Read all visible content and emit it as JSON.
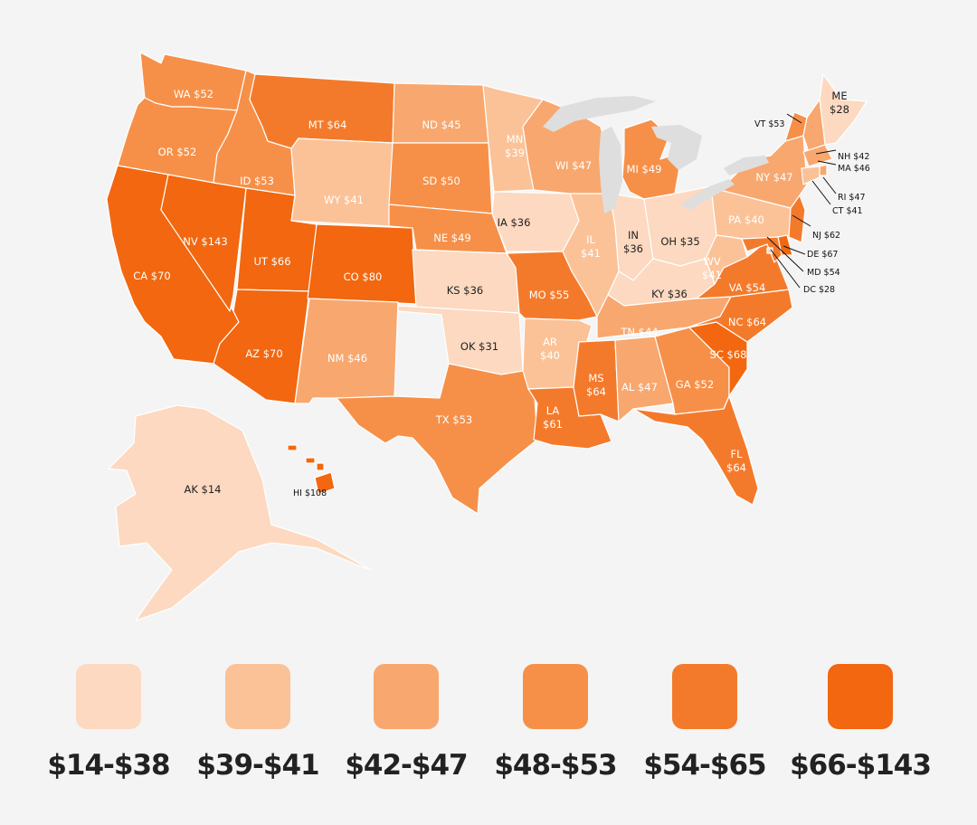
{
  "colors": {
    "background": "#f4f4f4",
    "bins": [
      "#fcd9c0",
      "#fbc298",
      "#f8a76f",
      "#f69049",
      "#f47a2b",
      "#f2670f"
    ]
  },
  "legend": [
    {
      "label": "$14-$38",
      "bin": 0
    },
    {
      "label": "$39-$41",
      "bin": 1
    },
    {
      "label": "$42-$47",
      "bin": 2
    },
    {
      "label": "$48-$53",
      "bin": 3
    },
    {
      "label": "$54-$65",
      "bin": 4
    },
    {
      "label": "$66-$143",
      "bin": 5
    }
  ],
  "states": [
    {
      "abbr": "WA",
      "label": "WA $52",
      "value": 52,
      "bin": 3
    },
    {
      "abbr": "OR",
      "label": "OR $52",
      "value": 52,
      "bin": 3
    },
    {
      "abbr": "CA",
      "label": "CA $70",
      "value": 70,
      "bin": 5
    },
    {
      "abbr": "NV",
      "label": "NV $143",
      "value": 143,
      "bin": 5
    },
    {
      "abbr": "ID",
      "label": "ID $53",
      "value": 53,
      "bin": 3
    },
    {
      "abbr": "MT",
      "label": "MT $64",
      "value": 64,
      "bin": 4
    },
    {
      "abbr": "WY",
      "label": "WY $41",
      "value": 41,
      "bin": 1
    },
    {
      "abbr": "UT",
      "label": "UT $66",
      "value": 66,
      "bin": 5
    },
    {
      "abbr": "AZ",
      "label": "AZ $70",
      "value": 70,
      "bin": 5
    },
    {
      "abbr": "CO",
      "label": "CO $80",
      "value": 80,
      "bin": 5
    },
    {
      "abbr": "NM",
      "label": "NM $46",
      "value": 46,
      "bin": 2
    },
    {
      "abbr": "ND",
      "label": "ND $45",
      "value": 45,
      "bin": 2
    },
    {
      "abbr": "SD",
      "label": "SD $50",
      "value": 50,
      "bin": 3
    },
    {
      "abbr": "NE",
      "label": "NE $49",
      "value": 49,
      "bin": 3
    },
    {
      "abbr": "KS",
      "label": "KS $36",
      "value": 36,
      "bin": 0
    },
    {
      "abbr": "OK",
      "label": "OK $31",
      "value": 31,
      "bin": 0
    },
    {
      "abbr": "TX",
      "label": "TX $53",
      "value": 53,
      "bin": 3
    },
    {
      "abbr": "MN",
      "label": "MN $39",
      "value": 39,
      "bin": 1
    },
    {
      "abbr": "IA",
      "label": "IA $36",
      "value": 36,
      "bin": 0
    },
    {
      "abbr": "MO",
      "label": "MO $55",
      "value": 55,
      "bin": 4
    },
    {
      "abbr": "AR",
      "label": "AR $40",
      "value": 40,
      "bin": 1
    },
    {
      "abbr": "LA",
      "label": "LA $61",
      "value": 61,
      "bin": 4
    },
    {
      "abbr": "WI",
      "label": "WI $47",
      "value": 47,
      "bin": 2
    },
    {
      "abbr": "IL",
      "label": "IL $41",
      "value": 41,
      "bin": 1
    },
    {
      "abbr": "MI",
      "label": "MI $49",
      "value": 49,
      "bin": 3
    },
    {
      "abbr": "IN",
      "label": "IN $36",
      "value": 36,
      "bin": 0
    },
    {
      "abbr": "OH",
      "label": "OH $35",
      "value": 35,
      "bin": 0
    },
    {
      "abbr": "KY",
      "label": "KY $36",
      "value": 36,
      "bin": 0
    },
    {
      "abbr": "TN",
      "label": "TN $44",
      "value": 44,
      "bin": 2
    },
    {
      "abbr": "MS",
      "label": "MS $64",
      "value": 64,
      "bin": 4
    },
    {
      "abbr": "AL",
      "label": "AL $47",
      "value": 47,
      "bin": 2
    },
    {
      "abbr": "GA",
      "label": "GA $52",
      "value": 52,
      "bin": 3
    },
    {
      "abbr": "FL",
      "label": "FL $64",
      "value": 64,
      "bin": 4
    },
    {
      "abbr": "SC",
      "label": "SC $68",
      "value": 68,
      "bin": 5
    },
    {
      "abbr": "NC",
      "label": "NC $64",
      "value": 64,
      "bin": 4
    },
    {
      "abbr": "VA",
      "label": "VA $54",
      "value": 54,
      "bin": 4
    },
    {
      "abbr": "WV",
      "label": "WV $41",
      "value": 41,
      "bin": 1
    },
    {
      "abbr": "PA",
      "label": "PA $40",
      "value": 40,
      "bin": 1
    },
    {
      "abbr": "NY",
      "label": "NY $47",
      "value": 47,
      "bin": 2
    },
    {
      "abbr": "ME",
      "label": "ME $28",
      "value": 28,
      "bin": 0
    },
    {
      "abbr": "AK",
      "label": "AK $14",
      "value": 14,
      "bin": 0
    },
    {
      "abbr": "VT",
      "label": "VT $53",
      "value": 53,
      "bin": 3
    },
    {
      "abbr": "NH",
      "label": "NH $42",
      "value": 42,
      "bin": 2
    },
    {
      "abbr": "MA",
      "label": "MA $46",
      "value": 46,
      "bin": 2
    },
    {
      "abbr": "RI",
      "label": "RI $47",
      "value": 47,
      "bin": 2
    },
    {
      "abbr": "CT",
      "label": "CT $41",
      "value": 41,
      "bin": 1
    },
    {
      "abbr": "NJ",
      "label": "NJ $62",
      "value": 62,
      "bin": 4
    },
    {
      "abbr": "DE",
      "label": "DE $67",
      "value": 67,
      "bin": 5
    },
    {
      "abbr": "MD",
      "label": "MD $54",
      "value": 54,
      "bin": 4
    },
    {
      "abbr": "DC",
      "label": "DC $28",
      "value": 28,
      "bin": 0
    },
    {
      "abbr": "HI",
      "label": "HI $108",
      "value": 108,
      "bin": 5
    }
  ]
}
